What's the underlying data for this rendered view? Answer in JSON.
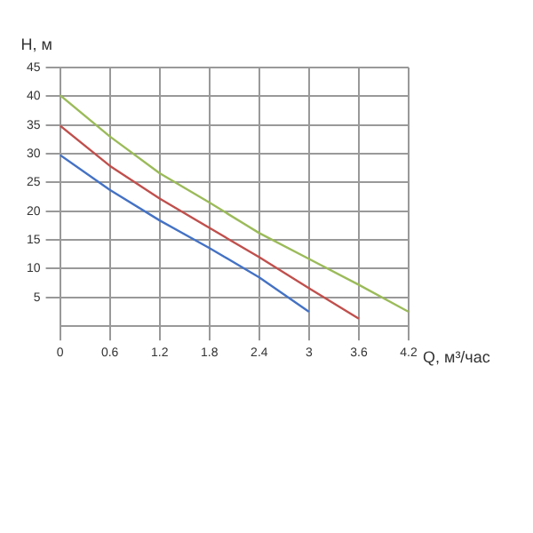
{
  "chart_data": {
    "type": "line",
    "xlabel": "Q, м³/час",
    "ylabel": "H, м",
    "xlim": [
      0,
      4.2
    ],
    "xticks": [
      0,
      0.6,
      1.2,
      1.8,
      2.4,
      3,
      3.6,
      4.2
    ],
    "ylim": [
      0,
      45
    ],
    "yticks": [
      5,
      10,
      15,
      20,
      25,
      30,
      35,
      40,
      45
    ],
    "grid": true,
    "marker": "none",
    "line_style": "solid",
    "series": [
      {
        "color": "#4472c4",
        "x": [
          0,
          0.6,
          1.2,
          1.8,
          2.4,
          3
        ],
        "values": [
          29.8,
          23.7,
          18.4,
          13.6,
          8.5,
          2.5
        ]
      },
      {
        "color": "#c0504d",
        "x": [
          0,
          0.6,
          1.2,
          1.8,
          2.4,
          3,
          3.6
        ],
        "values": [
          34.9,
          27.9,
          22.2,
          17.1,
          12,
          6.6,
          1.3
        ]
      },
      {
        "color": "#9bbb59",
        "x": [
          0,
          0.6,
          1.2,
          1.8,
          2.4,
          3,
          3.6,
          4.2
        ],
        "values": [
          40.2,
          33,
          26.6,
          21.5,
          16.2,
          11.7,
          7.2,
          2.5
        ]
      }
    ]
  }
}
